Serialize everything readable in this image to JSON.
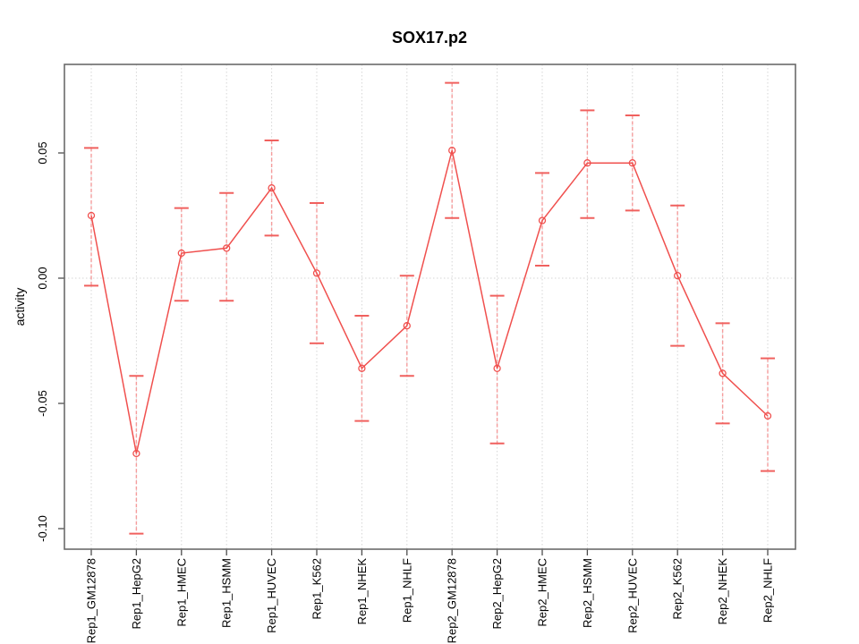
{
  "chart_data": {
    "type": "line",
    "title": "SOX17.p2",
    "xlabel": "",
    "ylabel": "activity",
    "ylim": [
      -0.108,
      0.085
    ],
    "grid": {
      "vertical": "dotted at every category",
      "horizontal": "dotted at y=0",
      "legend": "none"
    },
    "y_ticks": [
      {
        "value": 0.05,
        "label": "0.05"
      },
      {
        "value": 0.0,
        "label": "0.00"
      },
      {
        "value": -0.05,
        "label": "-0.05"
      },
      {
        "value": -0.1,
        "label": "-0.10"
      }
    ],
    "categories": [
      "Rep1_GM12878",
      "Rep1_HepG2",
      "Rep1_HMEC",
      "Rep1_HSMM",
      "Rep1_HUVEC",
      "Rep1_K562",
      "Rep1_NHEK",
      "Rep1_NHLF",
      "Rep2_GM12878",
      "Rep2_HepG2",
      "Rep2_HMEC",
      "Rep2_HSMM",
      "Rep2_HUVEC",
      "Rep2_K562",
      "Rep2_NHEK",
      "Rep2_NHLF"
    ],
    "series": [
      {
        "name": "activity",
        "marker": "open-circle",
        "values": [
          0.025,
          -0.07,
          0.01,
          0.012,
          0.036,
          0.002,
          -0.036,
          -0.019,
          0.051,
          -0.036,
          0.023,
          0.046,
          0.046,
          0.001,
          -0.038,
          -0.055
        ],
        "lower": [
          -0.003,
          -0.102,
          -0.009,
          -0.009,
          0.017,
          -0.026,
          -0.057,
          -0.039,
          0.024,
          -0.066,
          0.005,
          0.024,
          0.027,
          -0.027,
          -0.058,
          -0.077
        ],
        "upper": [
          0.052,
          -0.039,
          0.028,
          0.034,
          0.055,
          0.03,
          -0.015,
          0.001,
          0.078,
          -0.007,
          0.042,
          0.067,
          0.065,
          0.029,
          -0.018,
          -0.032
        ]
      }
    ],
    "colors": {
      "line": "#f0504e",
      "marker": "#f0504e",
      "error_stem": "#f59c9c",
      "error_cap": "#f0605e",
      "grid": "#d6d6d6",
      "frame": "#6a6a6a",
      "tick": "#4d4d4d",
      "text": "#000000"
    }
  }
}
